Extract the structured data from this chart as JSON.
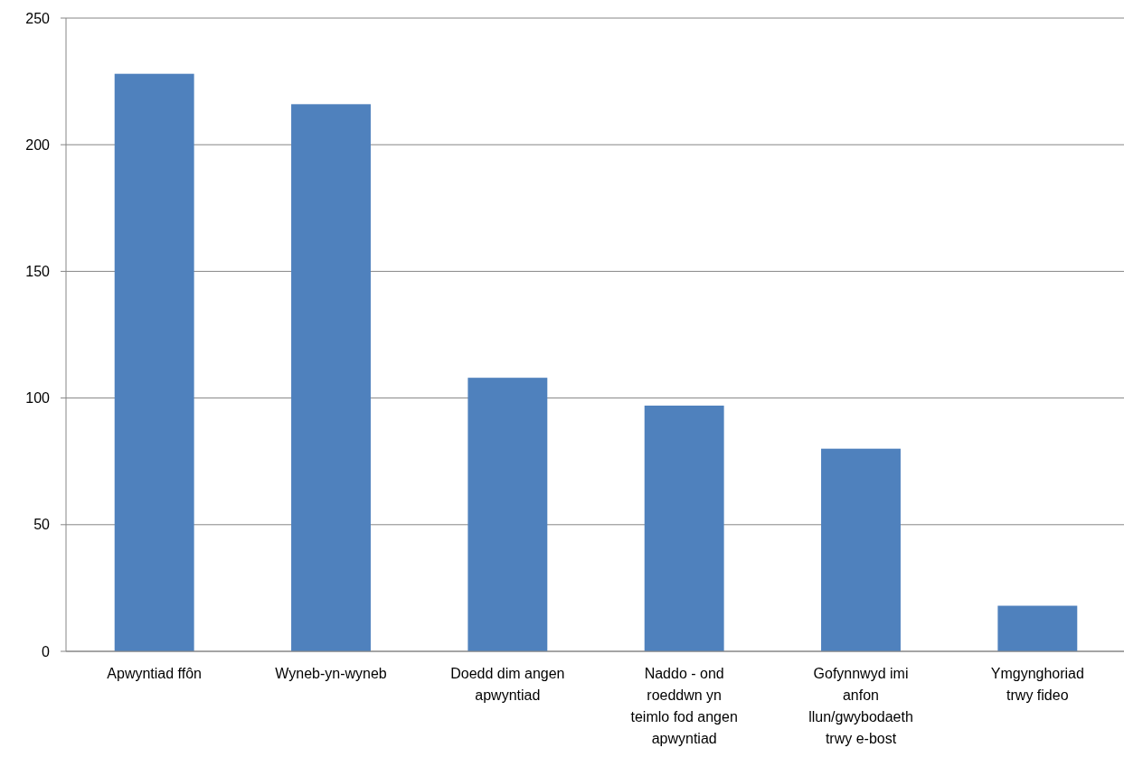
{
  "chart_data": {
    "type": "bar",
    "categories": [
      "Apwyntiad ffôn",
      "Wyneb-yn-wyneb",
      "Doedd dim angen apwyntiad",
      "Naddo - ond roeddwn yn teimlo fod angen apwyntiad",
      "Gofynnwyd imi anfon llun/gwybodaeth trwy e-bost",
      "Ymgynghoriad trwy fideo"
    ],
    "values": [
      228,
      216,
      108,
      97,
      80,
      18
    ],
    "color": "#4f81bd",
    "ylim": [
      0,
      250
    ],
    "yticks": [
      0,
      50,
      100,
      150,
      200,
      250
    ],
    "grid": "y"
  }
}
